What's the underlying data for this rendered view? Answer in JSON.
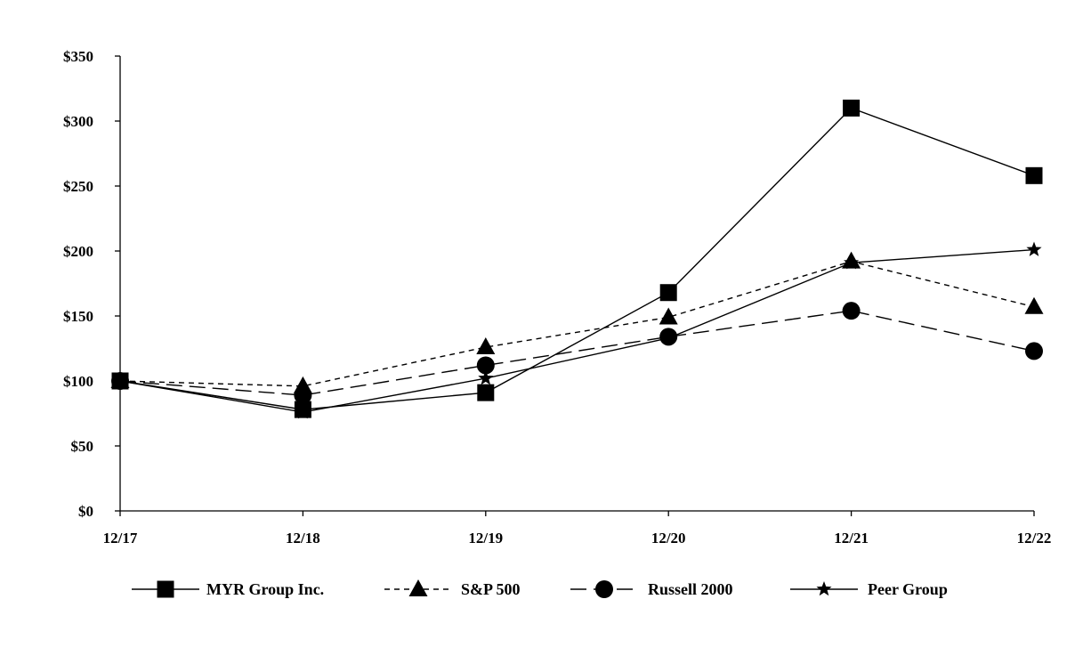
{
  "chart_data": {
    "type": "line",
    "title": "",
    "xlabel": "",
    "ylabel": "",
    "categories": [
      "12/17",
      "12/18",
      "12/19",
      "12/20",
      "12/21",
      "12/22"
    ],
    "y_ticks": [
      "$0",
      "$50",
      "$100",
      "$150",
      "$200",
      "$250",
      "$300",
      "$350"
    ],
    "y_tick_values": [
      0,
      50,
      100,
      150,
      200,
      250,
      300,
      350
    ],
    "ylim": [
      0,
      350
    ],
    "grid": false,
    "legend_position": "bottom",
    "series": [
      {
        "name": "MYR Group Inc.",
        "marker": "square",
        "line_style": "solid",
        "values": [
          100,
          78,
          91,
          168,
          310,
          258
        ]
      },
      {
        "name": "S&P 500",
        "marker": "triangle",
        "line_style": "dotted",
        "values": [
          100,
          96,
          126,
          149,
          192,
          157
        ]
      },
      {
        "name": "Russell 2000",
        "marker": "circle",
        "line_style": "dashed",
        "values": [
          100,
          89,
          112,
          134,
          154,
          123
        ]
      },
      {
        "name": "Peer Group",
        "marker": "star",
        "line_style": "solid",
        "values": [
          100,
          76,
          102,
          133,
          191,
          201
        ]
      }
    ],
    "colors": {
      "line": "#000000",
      "axis": "#000000",
      "background": "#ffffff"
    }
  }
}
